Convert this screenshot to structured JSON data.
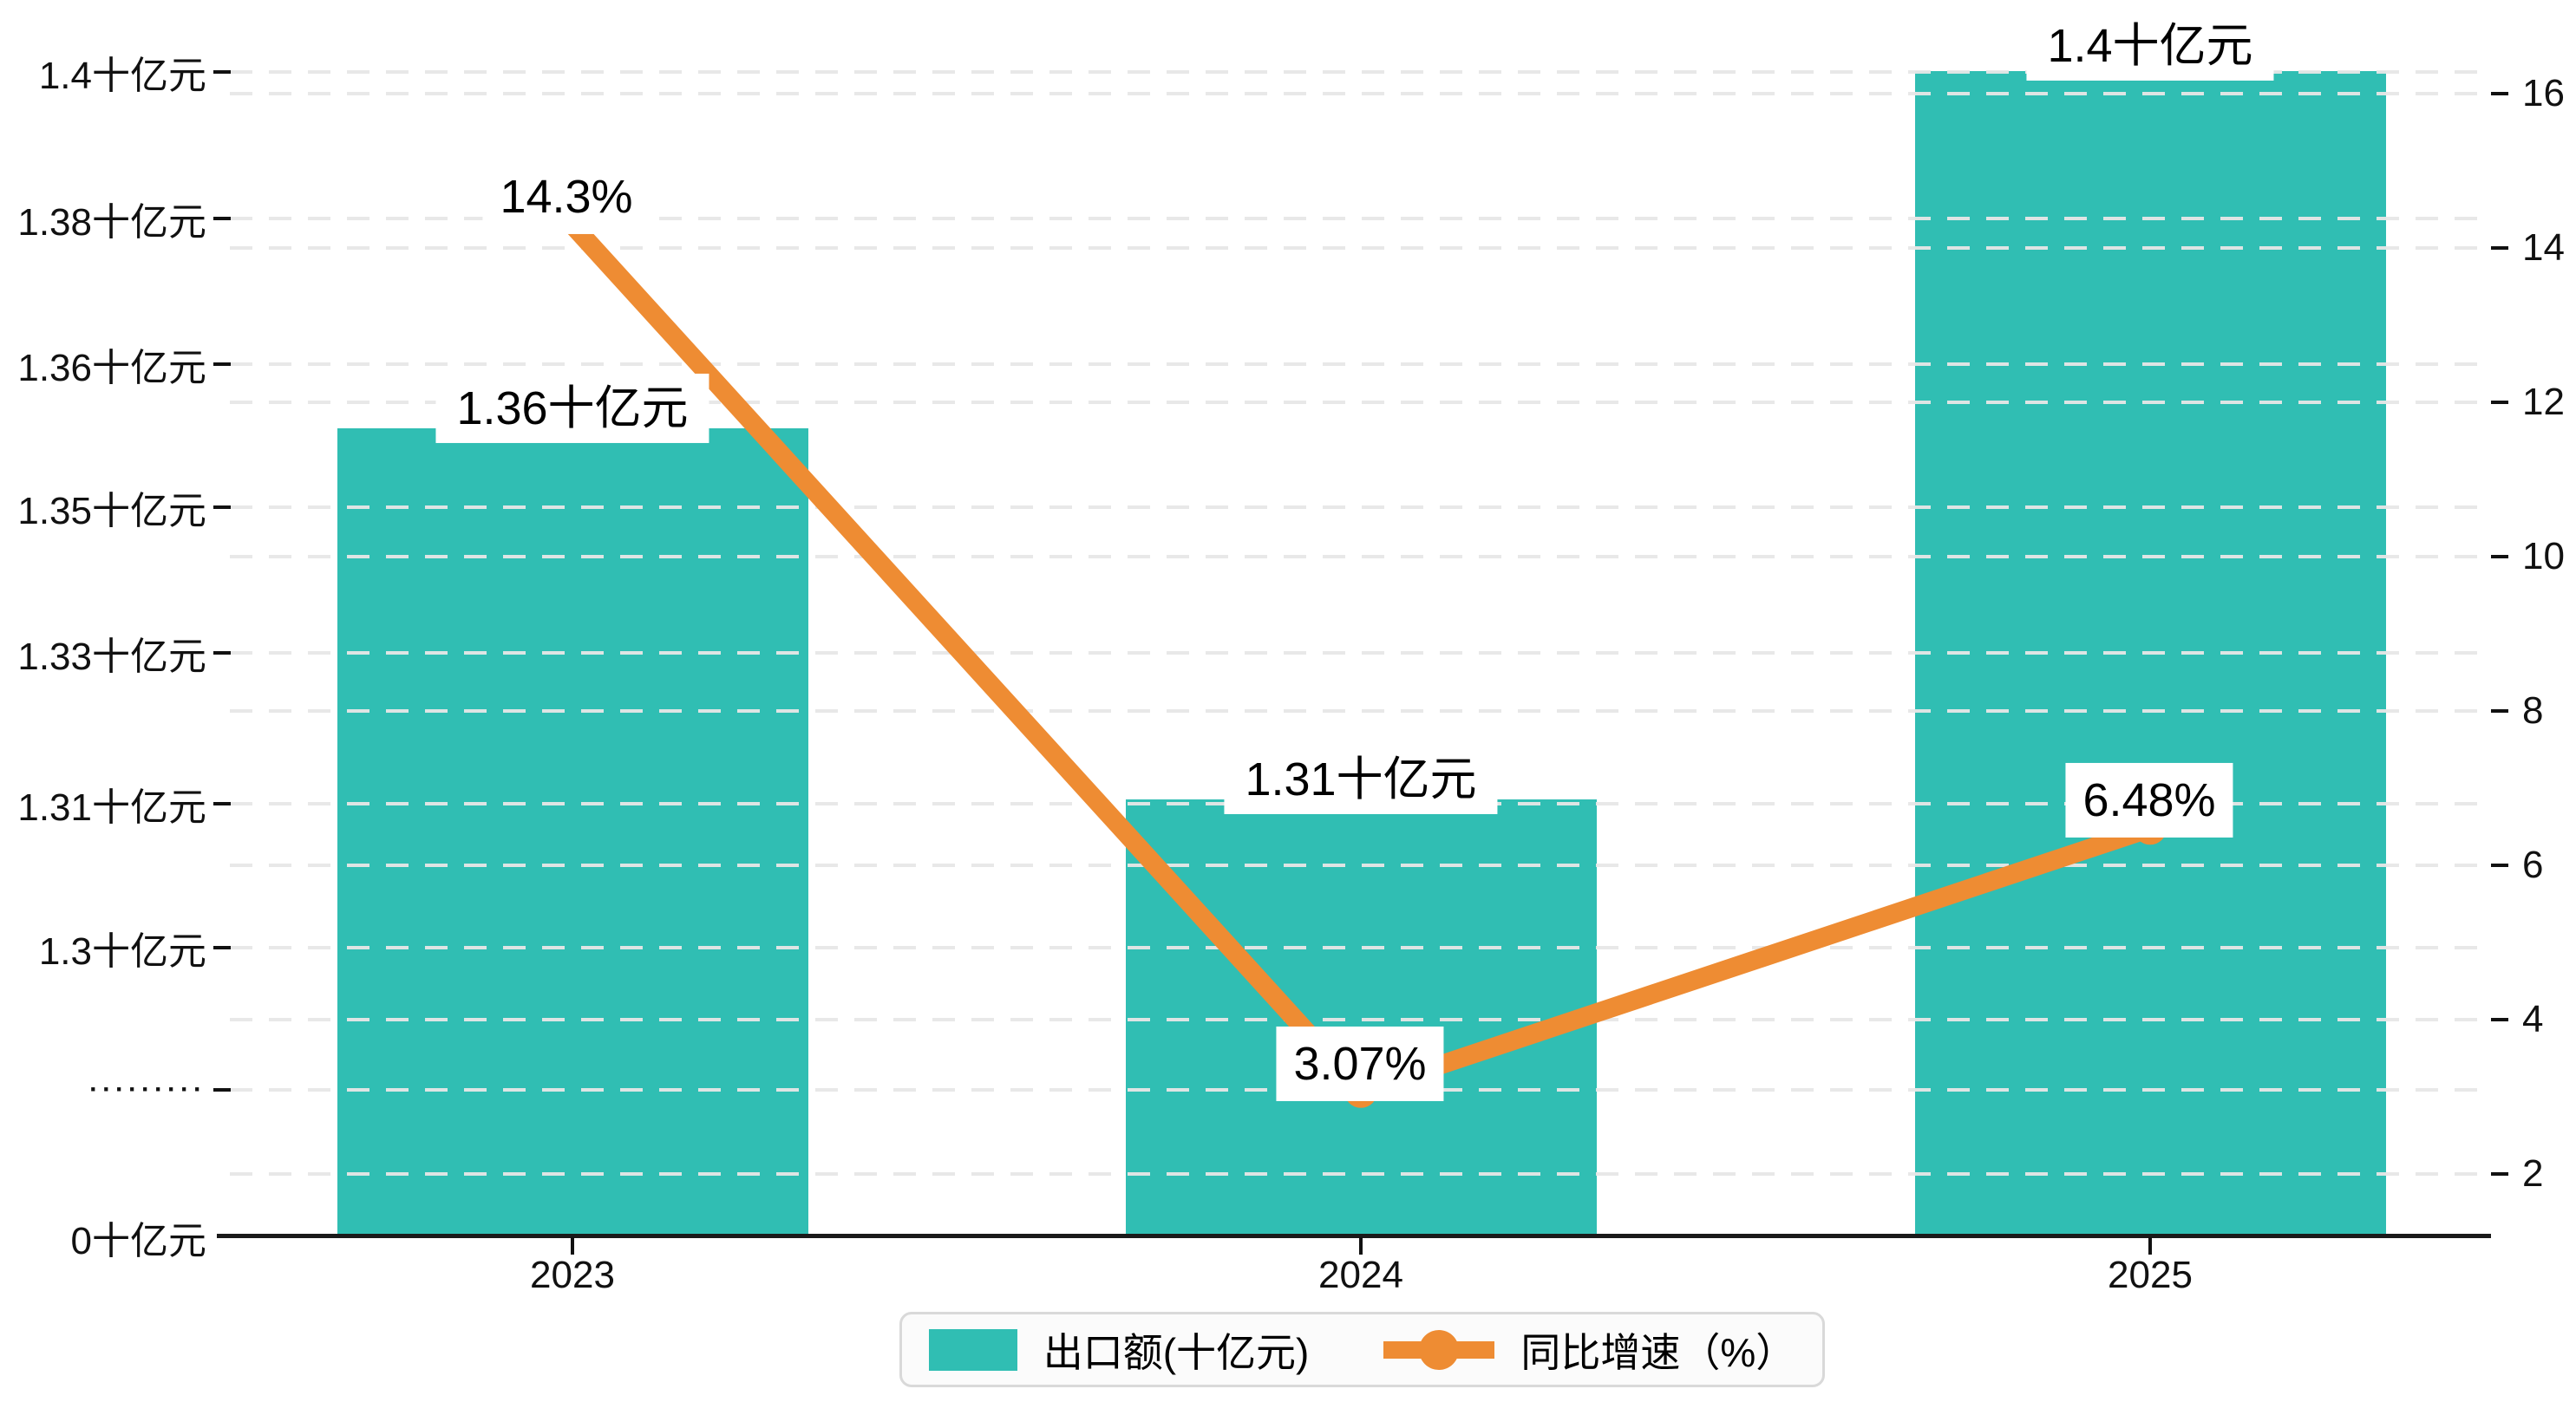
{
  "chart_data": {
    "type": "bar",
    "subtype": "bar-line-combo",
    "categories": [
      "2023",
      "2024",
      "2025"
    ],
    "series": [
      {
        "name": "出口额(十亿元)",
        "type": "bar",
        "values": [
          1.36,
          1.31,
          1.4
        ],
        "value_labels": [
          "1.36十亿元",
          "1.31十亿元",
          "1.4十亿元"
        ],
        "color": "#30BEB3"
      },
      {
        "name": "同比增速（%）",
        "type": "line",
        "values": [
          14.3,
          3.07,
          6.48
        ],
        "value_labels": [
          "14.3%",
          "3.07%",
          "6.48%"
        ],
        "color": "#EE8C33"
      }
    ],
    "left_axis": {
      "tick_labels": [
        "1.4十亿元",
        "1.38十亿元",
        "1.36十亿元",
        "1.35十亿元",
        "1.33十亿元",
        "1.31十亿元",
        "1.3十亿元",
        "·········",
        "0十亿元"
      ],
      "has_axis_break": true
    },
    "right_axis": {
      "tick_labels": [
        "16",
        "14",
        "12",
        "10",
        "8",
        "6",
        "4",
        "2"
      ],
      "min": 2,
      "max": 16
    },
    "grid": "dashed-horizontal",
    "legend_position": "bottom-center",
    "title": "",
    "xlabel": "",
    "ylabel": ""
  },
  "legend": {
    "items": [
      {
        "label": "出口额(十亿元)",
        "marker": "bar-swatch",
        "color": "#30BEB3"
      },
      {
        "label": "同比增速（%）",
        "marker": "line-dot",
        "color": "#EE8C33"
      }
    ]
  },
  "colors": {
    "bar": "#30BEB3",
    "line": "#EE8C33",
    "grid": "#e7e7e7",
    "axis": "#1a1a1a",
    "text": "#111111",
    "label_bg": "#ffffff"
  }
}
